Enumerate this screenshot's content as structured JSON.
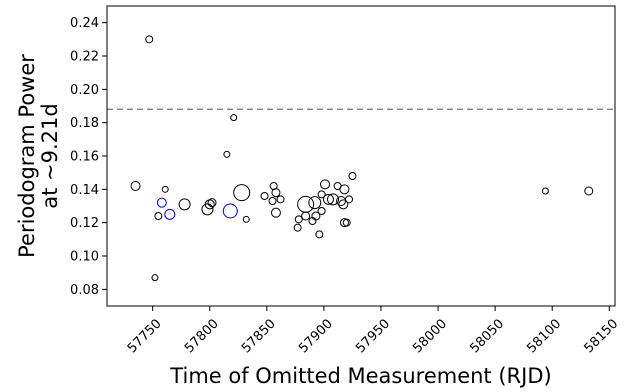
{
  "chart_data": {
    "type": "scatter",
    "xlabel": "Time of Omitted Measurement (RJD)",
    "ylabel_lines": [
      "Periodogram Power",
      "at ~9.21d"
    ],
    "xlim": [
      57710,
      58155
    ],
    "ylim": [
      0.07,
      0.25
    ],
    "xticks": [
      57750,
      57800,
      57850,
      57900,
      57950,
      58000,
      58050,
      58100,
      58150
    ],
    "yticks": [
      0.08,
      0.1,
      0.12,
      0.14,
      0.16,
      0.18,
      0.2,
      0.22,
      0.24
    ],
    "ytick_labels": [
      "0.08",
      "0.10",
      "0.12",
      "0.14",
      "0.16",
      "0.18",
      "0.20",
      "0.22",
      "0.24"
    ],
    "reference_line": {
      "y": 0.188,
      "style": "dashed",
      "color": "#808080"
    },
    "colors": {
      "default": "#000000",
      "highlight": "#0000cc"
    },
    "points": [
      {
        "x": 57735,
        "y": 0.142,
        "size": 4.5
      },
      {
        "x": 57747,
        "y": 0.23,
        "size": 3.5
      },
      {
        "x": 57752,
        "y": 0.087,
        "size": 3
      },
      {
        "x": 57755,
        "y": 0.124,
        "size": 3.5
      },
      {
        "x": 57758,
        "y": 0.132,
        "size": 4.5,
        "highlight": true
      },
      {
        "x": 57761,
        "y": 0.14,
        "size": 3
      },
      {
        "x": 57765,
        "y": 0.125,
        "size": 5,
        "highlight": true
      },
      {
        "x": 57778,
        "y": 0.131,
        "size": 5.5
      },
      {
        "x": 57798,
        "y": 0.128,
        "size": 5.5
      },
      {
        "x": 57800,
        "y": 0.131,
        "size": 4.5
      },
      {
        "x": 57802,
        "y": 0.132,
        "size": 4
      },
      {
        "x": 57815,
        "y": 0.161,
        "size": 3
      },
      {
        "x": 57818,
        "y": 0.127,
        "size": 7,
        "highlight": true
      },
      {
        "x": 57821,
        "y": 0.183,
        "size": 3
      },
      {
        "x": 57828,
        "y": 0.138,
        "size": 8
      },
      {
        "x": 57832,
        "y": 0.122,
        "size": 3
      },
      {
        "x": 57848,
        "y": 0.136,
        "size": 3.5
      },
      {
        "x": 57855,
        "y": 0.133,
        "size": 3.5
      },
      {
        "x": 57856,
        "y": 0.142,
        "size": 3.5
      },
      {
        "x": 57858,
        "y": 0.138,
        "size": 4
      },
      {
        "x": 57858,
        "y": 0.126,
        "size": 4.5
      },
      {
        "x": 57862,
        "y": 0.134,
        "size": 3.5
      },
      {
        "x": 57877,
        "y": 0.117,
        "size": 3.5
      },
      {
        "x": 57878,
        "y": 0.122,
        "size": 3.5
      },
      {
        "x": 57884,
        "y": 0.131,
        "size": 8
      },
      {
        "x": 57884,
        "y": 0.124,
        "size": 4
      },
      {
        "x": 57890,
        "y": 0.121,
        "size": 3.5
      },
      {
        "x": 57892,
        "y": 0.132,
        "size": 6
      },
      {
        "x": 57893,
        "y": 0.124,
        "size": 4
      },
      {
        "x": 57896,
        "y": 0.113,
        "size": 3.5
      },
      {
        "x": 57898,
        "y": 0.127,
        "size": 3.5
      },
      {
        "x": 57898,
        "y": 0.137,
        "size": 3.5
      },
      {
        "x": 57901,
        "y": 0.143,
        "size": 4.5
      },
      {
        "x": 57904,
        "y": 0.134,
        "size": 5
      },
      {
        "x": 57908,
        "y": 0.134,
        "size": 5.5
      },
      {
        "x": 57912,
        "y": 0.142,
        "size": 3.5
      },
      {
        "x": 57915,
        "y": 0.133,
        "size": 4.5
      },
      {
        "x": 57917,
        "y": 0.131,
        "size": 4.5
      },
      {
        "x": 57918,
        "y": 0.14,
        "size": 4.5
      },
      {
        "x": 57918,
        "y": 0.12,
        "size": 4
      },
      {
        "x": 57920,
        "y": 0.12,
        "size": 3.5
      },
      {
        "x": 57922,
        "y": 0.134,
        "size": 3.5
      },
      {
        "x": 57925,
        "y": 0.148,
        "size": 3.5
      },
      {
        "x": 58094,
        "y": 0.139,
        "size": 3
      },
      {
        "x": 58132,
        "y": 0.139,
        "size": 4
      }
    ]
  }
}
